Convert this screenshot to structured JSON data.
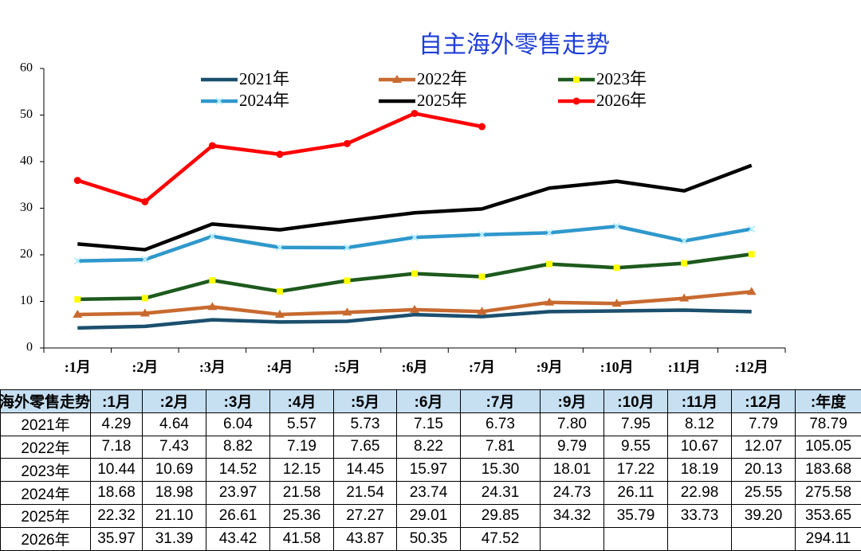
{
  "chart_data": {
    "type": "line",
    "title": "自主海外零售走势",
    "categories": [
      ":1月",
      ":2月",
      ":3月",
      ":4月",
      ":5月",
      ":6月",
      ":7月",
      ":9月",
      ":10月",
      ":11月",
      ":12月"
    ],
    "ylim": [
      0,
      60
    ],
    "yticks": [
      0,
      10,
      20,
      30,
      40,
      50,
      60
    ],
    "grid": false,
    "legend": "top",
    "series": [
      {
        "name": "2021年",
        "color": "#1b4f6e",
        "marker": "none",
        "values": [
          4.29,
          4.64,
          6.04,
          5.57,
          5.73,
          7.15,
          6.73,
          7.8,
          7.95,
          8.12,
          7.79
        ]
      },
      {
        "name": "2022年",
        "color": "#c86a30",
        "marker": "triangle",
        "marker_color": "#c86a30",
        "values": [
          7.18,
          7.43,
          8.82,
          7.19,
          7.65,
          8.22,
          7.81,
          9.79,
          9.55,
          10.67,
          12.07
        ]
      },
      {
        "name": "2023年",
        "color": "#1d5a1d",
        "marker": "square",
        "marker_color": "#ffff00",
        "values": [
          10.44,
          10.69,
          14.52,
          12.15,
          14.45,
          15.97,
          15.3,
          18.01,
          17.22,
          18.19,
          20.13
        ]
      },
      {
        "name": "2024年",
        "color": "#2f98cc",
        "marker": "x",
        "marker_color": "#b8f0ff",
        "values": [
          18.68,
          18.98,
          23.97,
          21.58,
          21.54,
          23.74,
          24.31,
          24.73,
          26.11,
          22.98,
          25.55
        ]
      },
      {
        "name": "2025年",
        "color": "#000000",
        "marker": "none",
        "values": [
          22.32,
          21.1,
          26.61,
          25.36,
          27.27,
          29.01,
          29.85,
          34.32,
          35.79,
          33.73,
          39.2
        ]
      },
      {
        "name": "2026年",
        "color": "#ff0000",
        "marker": "circle",
        "marker_color": "#ff0000",
        "values": [
          35.97,
          31.39,
          43.42,
          41.58,
          43.87,
          50.35,
          47.52,
          null,
          null,
          null,
          null
        ]
      }
    ]
  },
  "table": {
    "header": [
      "自主海外零售走势",
      ":1月",
      ":2月",
      ":3月",
      ":4月",
      ":5月",
      ":6月",
      ":7月",
      ":9月",
      ":10月",
      ":11月",
      ":12月",
      ":年度"
    ],
    "rows": [
      {
        "name": "2021年",
        "cells": [
          "4.29",
          "4.64",
          "6.04",
          "5.57",
          "5.73",
          "7.15",
          "6.73",
          "7.80",
          "7.95",
          "8.12",
          "7.79"
        ],
        "total": "78.79"
      },
      {
        "name": "2022年",
        "cells": [
          "7.18",
          "7.43",
          "8.82",
          "7.19",
          "7.65",
          "8.22",
          "7.81",
          "9.79",
          "9.55",
          "10.67",
          "12.07"
        ],
        "total": "105.05"
      },
      {
        "name": "2023年",
        "cells": [
          "10.44",
          "10.69",
          "14.52",
          "12.15",
          "14.45",
          "15.97",
          "15.30",
          "18.01",
          "17.22",
          "18.19",
          "20.13"
        ],
        "total": "183.68"
      },
      {
        "name": "2024年",
        "cells": [
          "18.68",
          "18.98",
          "23.97",
          "21.58",
          "21.54",
          "23.74",
          "24.31",
          "24.73",
          "26.11",
          "22.98",
          "25.55"
        ],
        "total": "275.58"
      },
      {
        "name": "2025年",
        "cells": [
          "22.32",
          "21.10",
          "26.61",
          "25.36",
          "27.27",
          "29.01",
          "29.85",
          "34.32",
          "35.79",
          "33.73",
          "39.20"
        ],
        "total": "353.65"
      },
      {
        "name": "2026年",
        "cells": [
          "35.97",
          "31.39",
          "43.42",
          "41.58",
          "43.87",
          "50.35",
          "47.52"
        ],
        "total": "294.11"
      }
    ]
  }
}
